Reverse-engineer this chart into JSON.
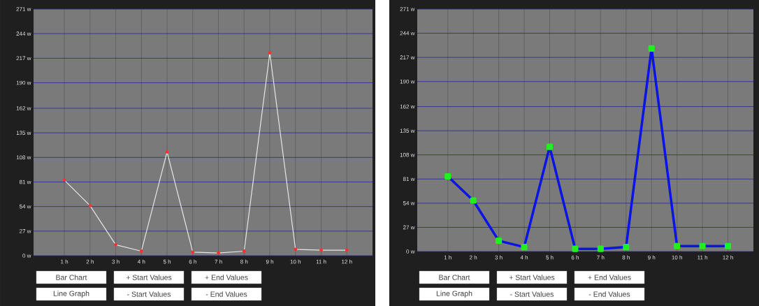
{
  "chart_data": [
    {
      "type": "line",
      "categories": [
        "1 h",
        "2 h",
        "3 h",
        "4 h",
        "5 h",
        "6 h",
        "7 h",
        "8 h",
        "9 h",
        "10 h",
        "11 h",
        "12 h"
      ],
      "series": [
        {
          "color": "#e6e6e6",
          "values": [
            83,
            55,
            12,
            5,
            114,
            4,
            3,
            5,
            223,
            7,
            6,
            6
          ]
        }
      ],
      "ylim": [
        0,
        271
      ],
      "yticks": [
        {
          "value": 0,
          "label": "0 w"
        },
        {
          "value": 27,
          "label": "27 w"
        },
        {
          "value": 54,
          "label": "54 w"
        },
        {
          "value": 81,
          "label": "81 w"
        },
        {
          "value": 108,
          "label": "108 w"
        },
        {
          "value": 135,
          "label": "135 w"
        },
        {
          "value": 162,
          "label": "162 w"
        },
        {
          "value": 190,
          "label": "190 w"
        },
        {
          "value": 217,
          "label": "217 w"
        },
        {
          "value": 244,
          "label": "244 w"
        },
        {
          "value": 271,
          "label": "271 w"
        }
      ],
      "grid": true,
      "marker": "circle",
      "annotations": [
        "Bar Chart",
        "+ Start Values",
        "+ End Values",
        "Line Graph",
        "- Start Values",
        "- End Values"
      ]
    },
    {
      "type": "line",
      "categories": [
        "1 h",
        "2 h",
        "3 h",
        "4 h",
        "5 h",
        "6 h",
        "7 h",
        "8 h",
        "9 h",
        "10 h",
        "11 h",
        "12 h"
      ],
      "series": [
        {
          "color": "#0a14e6",
          "values": [
            84,
            57,
            12,
            5,
            117,
            3,
            3,
            5,
            227,
            6,
            6,
            6
          ]
        }
      ],
      "ylim": [
        0,
        271
      ],
      "yticks": [
        {
          "value": 0,
          "label": "0 w"
        },
        {
          "value": 27,
          "label": "27 w"
        },
        {
          "value": 54,
          "label": "54 w"
        },
        {
          "value": 81,
          "label": "81 w"
        },
        {
          "value": 108,
          "label": "108 w"
        },
        {
          "value": 135,
          "label": "135 w"
        },
        {
          "value": 162,
          "label": "162 w"
        },
        {
          "value": 190,
          "label": "190 w"
        },
        {
          "value": 217,
          "label": "217 w"
        },
        {
          "value": 244,
          "label": "244 w"
        },
        {
          "value": 271,
          "label": "271 w"
        }
      ],
      "grid": true,
      "marker": "square",
      "annotations": [
        "Bar Chart",
        "+ Start Values",
        "+ End Values",
        "Line Graph",
        "- Start Values",
        "- End Values"
      ]
    }
  ]
}
